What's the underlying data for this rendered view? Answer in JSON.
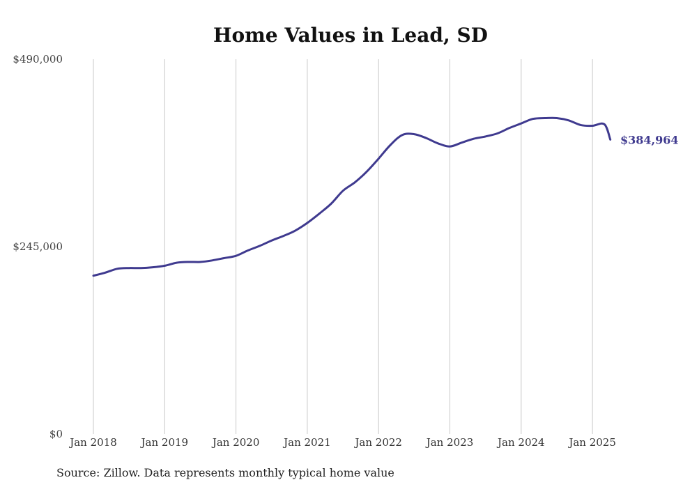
{
  "chart_data": {
    "type": "line",
    "title": "Home Values in Lead, SD",
    "xlabel": "",
    "ylabel": "",
    "ylim": [
      0,
      490000
    ],
    "y_ticks": [
      {
        "value": 0,
        "label": "$0"
      },
      {
        "value": 245000,
        "label": "$245,000"
      },
      {
        "value": 490000,
        "label": "$490,000"
      }
    ],
    "x_ticks": [
      {
        "value": 2018,
        "label": "Jan 2018"
      },
      {
        "value": 2019,
        "label": "Jan 2019"
      },
      {
        "value": 2020,
        "label": "Jan 2020"
      },
      {
        "value": 2021,
        "label": "Jan 2021"
      },
      {
        "value": 2022,
        "label": "Jan 2022"
      },
      {
        "value": 2023,
        "label": "Jan 2023"
      },
      {
        "value": 2024,
        "label": "Jan 2024"
      },
      {
        "value": 2025,
        "label": "Jan 2025"
      }
    ],
    "grid": "vertical",
    "line_color": "#3f3a8f",
    "end_label": "$384,964",
    "series": [
      {
        "x": [
          "2018-01",
          "2018-03",
          "2018-05",
          "2018-07",
          "2018-09",
          "2018-11",
          "2019-01",
          "2019-03",
          "2019-05",
          "2019-07",
          "2019-09",
          "2019-11",
          "2020-01",
          "2020-03",
          "2020-05",
          "2020-07",
          "2020-09",
          "2020-11",
          "2021-01",
          "2021-03",
          "2021-05",
          "2021-07",
          "2021-09",
          "2021-11",
          "2022-01",
          "2022-03",
          "2022-05",
          "2022-07",
          "2022-09",
          "2022-11",
          "2023-01",
          "2023-03",
          "2023-05",
          "2023-07",
          "2023-09",
          "2023-11",
          "2024-01",
          "2024-03",
          "2024-05",
          "2024-07",
          "2024-09",
          "2024-11",
          "2025-01",
          "2025-03",
          "2025-04"
        ],
        "values": [
          207000,
          211000,
          216000,
          217000,
          217000,
          218000,
          220000,
          224000,
          225000,
          225000,
          227000,
          230000,
          233000,
          240000,
          246000,
          253000,
          259000,
          266000,
          276000,
          288000,
          301000,
          318000,
          329000,
          343000,
          360000,
          378000,
          391000,
          392000,
          387000,
          380000,
          376000,
          381000,
          386000,
          389000,
          393000,
          400000,
          406000,
          412000,
          413000,
          413000,
          410000,
          404000,
          403000,
          405000,
          384964
        ]
      }
    ]
  },
  "source_note": "Source: Zillow. Data represents monthly typical home value"
}
